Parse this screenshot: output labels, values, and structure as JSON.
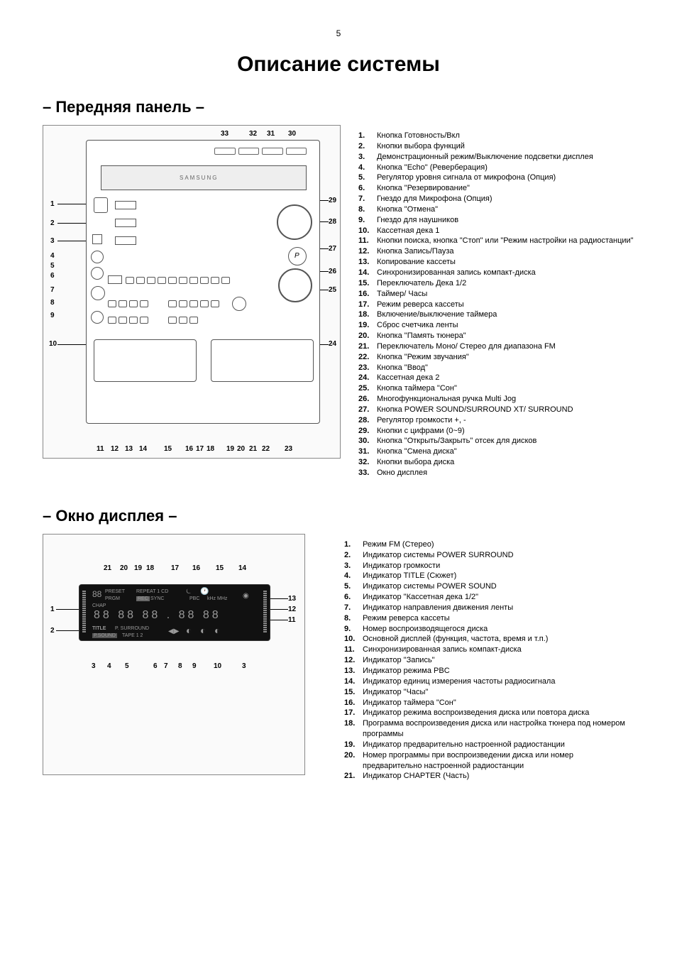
{
  "page_number": "5",
  "main_title": "Описание системы",
  "section1": {
    "title": "– Передняя панель –",
    "top_labels": [
      "33",
      "32",
      "31",
      "30"
    ],
    "left_labels": [
      "1",
      "2",
      "3",
      "4",
      "5",
      "6",
      "7",
      "8",
      "9",
      "10"
    ],
    "right_labels": [
      "29",
      "28",
      "27",
      "26",
      "25",
      "24"
    ],
    "bottom_labels": [
      "11",
      "12",
      "13",
      "14",
      "15",
      "16",
      "17",
      "18",
      "19",
      "20",
      "21",
      "22",
      "23"
    ],
    "brand": "SAMSUNG",
    "legend": [
      {
        "n": "1.",
        "t": "Кнопка Готовность/Вкл"
      },
      {
        "n": "2.",
        "t": "Кнопки выбора функций"
      },
      {
        "n": "3.",
        "t": "Демонстрационный режим/Выключение подсветки дисплея"
      },
      {
        "n": "4.",
        "t": "Кнопка \"Echo\" (Реверберация)"
      },
      {
        "n": "5.",
        "t": "Регулятор уровня сигнала от микрофона (Опция)"
      },
      {
        "n": "6.",
        "t": "Кнопка \"Резервирование\""
      },
      {
        "n": "7.",
        "t": "Гнездо для Микрофона (Опция)"
      },
      {
        "n": "8.",
        "t": "Кнопка \"Отмена\""
      },
      {
        "n": "9.",
        "t": "Гнездо для наушников"
      },
      {
        "n": "10.",
        "t": "Кассетная дека 1"
      },
      {
        "n": "11.",
        "t": "Кнопки поиска, кнопка \"Стоп\" или \"Режим настройки на радиостанции\""
      },
      {
        "n": "12.",
        "t": "Кнопка Запись/Пауза"
      },
      {
        "n": "13.",
        "t": "Копирование кассеты"
      },
      {
        "n": "14.",
        "t": "Синхронизированная запись компакт-диска"
      },
      {
        "n": "15.",
        "t": "Переключатель Дека 1/2"
      },
      {
        "n": "16.",
        "t": "Таймер/ Часы"
      },
      {
        "n": "17.",
        "t": "Режим реверса кассеты"
      },
      {
        "n": "18.",
        "t": "Включение/выключение таймера"
      },
      {
        "n": "19.",
        "t": "Сброс счетчика ленты"
      },
      {
        "n": "20.",
        "t": "Кнопка \"Память тюнера\""
      },
      {
        "n": "21.",
        "t": "Переключатель Моно/ Стерео для диапазона FM"
      },
      {
        "n": "22.",
        "t": "Кнопка \"Режим звучания\""
      },
      {
        "n": "23.",
        "t": "Кнопка \"Ввод\""
      },
      {
        "n": "24.",
        "t": "Кассетная дека 2"
      },
      {
        "n": "25.",
        "t": "Кнопка таймера \"Сон\""
      },
      {
        "n": "26.",
        "t": "Многофункциональная ручка Multi Jog"
      },
      {
        "n": "27.",
        "t": "Кнопка POWER SOUND/SURROUND XT/ SURROUND"
      },
      {
        "n": "28.",
        "t": "Регулятор громкости +, -"
      },
      {
        "n": "29.",
        "t": "Кнопки с цифрами (0~9)"
      },
      {
        "n": "30.",
        "t": "Кнопка \"Открыть/Закрыть\" отсек для дисков"
      },
      {
        "n": "31.",
        "t": "Кнопка \"Смена диска\""
      },
      {
        "n": "32.",
        "t": "Кнопки выбора диска"
      },
      {
        "n": "33.",
        "t": "Окно дисплея"
      }
    ]
  },
  "section2": {
    "title": "– Окно дисплея –",
    "top_labels": [
      "21",
      "20",
      "19",
      "18",
      "17",
      "16",
      "15",
      "14"
    ],
    "left_labels": [
      "1",
      "2"
    ],
    "right_labels": [
      "13",
      "12",
      "11"
    ],
    "bottom_labels": [
      "3",
      "4",
      "5",
      "6",
      "7",
      "8",
      "9",
      "10",
      "3"
    ],
    "lcd_text": {
      "preset": "PRESET",
      "prgm": "PRGM",
      "repeat": "REPEAT 1 CD",
      "rec": "REC",
      "sync": "SYNC",
      "pbc": "PBC",
      "khz": "kHz MHz",
      "title": "TITLE",
      "psurround": "P. SURROUND",
      "psound": "P.SOUND",
      "tape": "TAPE 1 2",
      "chap": "CHAP"
    },
    "legend": [
      {
        "n": "1.",
        "t": "Режим FM (Стерео)"
      },
      {
        "n": "2.",
        "t": "Индикатор системы POWER SURROUND"
      },
      {
        "n": "3.",
        "t": "Индикатор громкости"
      },
      {
        "n": "4.",
        "t": "Индикатор TITLE (Сюжет)"
      },
      {
        "n": "5.",
        "t": "Индикатор системы POWER SOUND"
      },
      {
        "n": "6.",
        "t": "Индикатор \"Кассетная дека 1/2\""
      },
      {
        "n": "7.",
        "t": "Индикатор направления движения ленты"
      },
      {
        "n": "8.",
        "t": "Режим реверса кассеты"
      },
      {
        "n": "9.",
        "t": "Номер воспроизводящегося диска"
      },
      {
        "n": "10.",
        "t": "Основной дисплей (функция, частота, время и т.п.)"
      },
      {
        "n": "11.",
        "t": "Синхронизированная запись компакт-диска"
      },
      {
        "n": "12.",
        "t": "Индикатор \"Запись\""
      },
      {
        "n": "13.",
        "t": "Индикатор режима PBC"
      },
      {
        "n": "14.",
        "t": "Индикатор единиц измерения частоты радиосигнала"
      },
      {
        "n": "15.",
        "t": "Индикатор \"Часы\""
      },
      {
        "n": "16.",
        "t": "Индикатор таймера \"Сон\""
      },
      {
        "n": "17.",
        "t": "Индикатор режима воспроизведения диска или повтора диска"
      },
      {
        "n": "18.",
        "t": "Программа воспроизведения диска или настройка тюнера под номером программы"
      },
      {
        "n": "19.",
        "t": "Индикатор предварительно настроенной радиостанции"
      },
      {
        "n": "20.",
        "t": "Номер программы при воспроизведении диска или номер предварительно настроенной радиостанции"
      },
      {
        "n": "21.",
        "t": "Индикатор CHAPTER (Часть)"
      }
    ]
  }
}
